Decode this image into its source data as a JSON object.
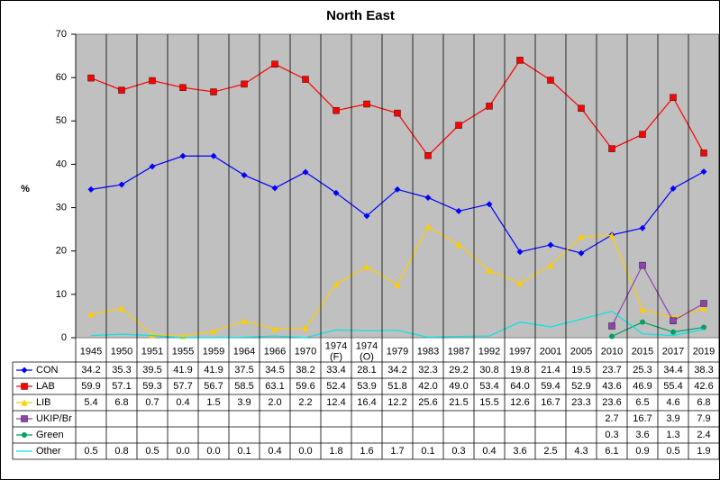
{
  "chart_data": {
    "type": "line",
    "title": "North East",
    "y_label": "%",
    "categories": [
      "1945",
      "1950",
      "1951",
      "1955",
      "1959",
      "1964",
      "1966",
      "1970",
      "1974\n(F)",
      "1974\n(O)",
      "1979",
      "1983",
      "1987",
      "1992",
      "1997",
      "2001",
      "2005",
      "2010",
      "2015",
      "2017",
      "2019"
    ],
    "ylim": [
      0,
      70
    ],
    "yticks": [
      0,
      10,
      20,
      30,
      40,
      50,
      60,
      70
    ],
    "grid": false,
    "plot_background": "#c0c0c0",
    "series": [
      {
        "name": "CON",
        "color": "#0000ff",
        "marker": "diamond",
        "values": [
          34.2,
          35.3,
          39.5,
          41.9,
          41.9,
          37.5,
          34.5,
          38.2,
          33.4,
          28.1,
          34.2,
          32.3,
          29.2,
          30.8,
          19.8,
          21.4,
          19.5,
          23.7,
          25.3,
          34.4,
          38.3
        ],
        "value_labels": [
          "34.2",
          "35.3",
          "39.5",
          "41.9",
          "41.9",
          "37.5",
          "34.5",
          "38.2",
          "33.4",
          "28.1",
          "34.2",
          "32.3",
          "29.2",
          "30.8",
          "19.8",
          "21.4",
          "19.5",
          "23.7",
          "25.3",
          "34.4",
          "38.3"
        ]
      },
      {
        "name": "LAB",
        "color": "#ff0000",
        "marker": "square",
        "values": [
          59.9,
          57.1,
          59.3,
          57.7,
          56.7,
          58.5,
          63.1,
          59.6,
          52.4,
          53.9,
          51.8,
          42.0,
          49.0,
          53.4,
          64.0,
          59.4,
          52.9,
          43.6,
          46.9,
          55.4,
          42.6
        ],
        "value_labels": [
          "59.9",
          "57.1",
          "59.3",
          "57.7",
          "56.7",
          "58.5",
          "63.1",
          "59.6",
          "52.4",
          "53.9",
          "51.8",
          "42.0",
          "49.0",
          "53.4",
          "64.0",
          "59.4",
          "52.9",
          "43.6",
          "46.9",
          "55.4",
          "42.6"
        ]
      },
      {
        "name": "LIB",
        "color": "#ffcc00",
        "marker": "triangle",
        "values": [
          5.4,
          6.8,
          0.7,
          0.4,
          1.5,
          3.9,
          2.0,
          2.2,
          12.4,
          16.4,
          12.2,
          25.6,
          21.5,
          15.5,
          12.6,
          16.7,
          23.3,
          23.6,
          6.5,
          4.6,
          6.8
        ],
        "value_labels": [
          "5.4",
          "6.8",
          "0.7",
          "0.4",
          "1.5",
          "3.9",
          "2.0",
          "2.2",
          "12.4",
          "16.4",
          "12.2",
          "25.6",
          "21.5",
          "15.5",
          "12.6",
          "16.7",
          "23.3",
          "23.6",
          "6.5",
          "4.6",
          "6.8"
        ]
      },
      {
        "name": "UKIP/Br",
        "color": "#8e44ad",
        "marker": "square",
        "values": [
          null,
          null,
          null,
          null,
          null,
          null,
          null,
          null,
          null,
          null,
          null,
          null,
          null,
          null,
          null,
          null,
          null,
          2.7,
          16.7,
          3.9,
          7.9
        ],
        "value_labels": [
          null,
          null,
          null,
          null,
          null,
          null,
          null,
          null,
          null,
          null,
          null,
          null,
          null,
          null,
          null,
          null,
          null,
          "2.7",
          "16.7",
          "3.9",
          "7.9"
        ]
      },
      {
        "name": "Green",
        "color": "#00a060",
        "marker": "circle",
        "values": [
          null,
          null,
          null,
          null,
          null,
          null,
          null,
          null,
          null,
          null,
          null,
          null,
          null,
          null,
          null,
          null,
          null,
          0.3,
          3.6,
          1.3,
          2.4
        ],
        "value_labels": [
          null,
          null,
          null,
          null,
          null,
          null,
          null,
          null,
          null,
          null,
          null,
          null,
          null,
          null,
          null,
          null,
          null,
          "0.3",
          "3.6",
          "1.3",
          "2.4"
        ]
      },
      {
        "name": "Other",
        "color": "#00e5e5",
        "marker": "none",
        "values": [
          0.5,
          0.8,
          0.5,
          0.0,
          0.0,
          0.1,
          0.4,
          0.0,
          1.8,
          1.6,
          1.7,
          0.1,
          0.3,
          0.4,
          3.6,
          2.5,
          4.3,
          6.1,
          0.9,
          0.5,
          1.9
        ],
        "value_labels": [
          "0.5",
          "0.8",
          "0.5",
          "0.0",
          "0.0",
          "0.1",
          "0.4",
          "0.0",
          "1.8",
          "1.6",
          "1.7",
          "0.1",
          "0.3",
          "0.4",
          "3.6",
          "2.5",
          "4.3",
          "6.1",
          "0.9",
          "0.5",
          "1.9"
        ]
      }
    ]
  }
}
